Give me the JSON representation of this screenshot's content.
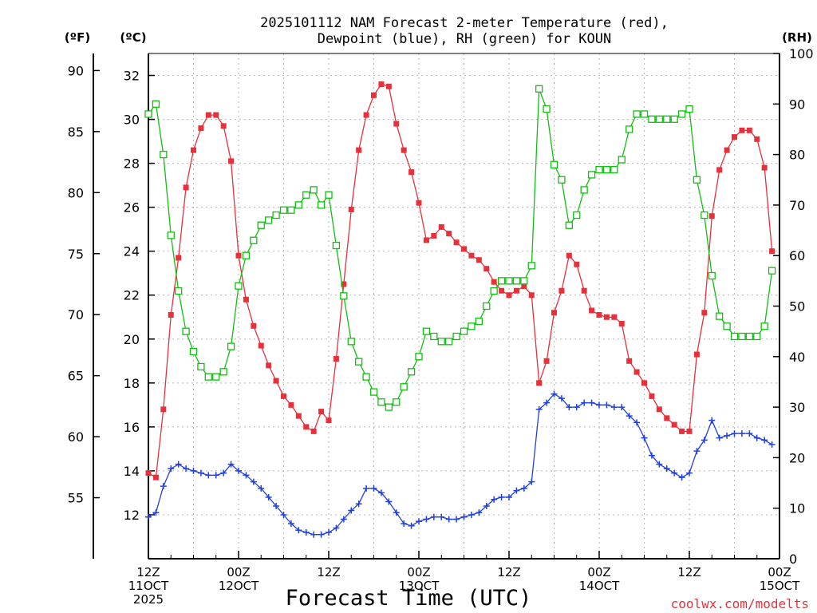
{
  "title": {
    "line1": "2025101112 NAM Forecast 2-meter Temperature (red),",
    "line2": "Dewpoint (blue), RH (green) for KOUN"
  },
  "unit_labels": {
    "fahrenheit": "(ºF)",
    "celsius": "(ºC)",
    "rh": "(RH)"
  },
  "x_axis_label": "Forecast Time (UTC)",
  "credit": "coolwx.com/modelts",
  "colors": {
    "temperature": "#e8303a",
    "dewpoint": "#2040e0",
    "rh": "#10c010",
    "credit": "#e8303a"
  },
  "chart_data": {
    "type": "line",
    "title": "2025101112 NAM Forecast 2-meter Temperature (red), Dewpoint (blue), RH (green) for KOUN",
    "xlabel": "Forecast Time (UTC)",
    "x_unit": "forecast hour",
    "xlim": [
      0,
      84
    ],
    "x_ticks": [
      {
        "x": 0,
        "lines": [
          "12Z",
          "11OCT",
          "2025"
        ]
      },
      {
        "x": 12,
        "lines": [
          "00Z",
          "12OCT"
        ]
      },
      {
        "x": 24,
        "lines": [
          "12Z"
        ]
      },
      {
        "x": 36,
        "lines": [
          "00Z",
          "13OCT"
        ]
      },
      {
        "x": 48,
        "lines": [
          "12Z"
        ]
      },
      {
        "x": 60,
        "lines": [
          "00Z",
          "14OCT"
        ]
      },
      {
        "x": 72,
        "lines": [
          "12Z"
        ]
      },
      {
        "x": 84,
        "lines": [
          "00Z",
          "15OCT"
        ]
      }
    ],
    "y_left_celsius": {
      "ticks": [
        12,
        14,
        16,
        18,
        20,
        22,
        24,
        26,
        28,
        30,
        32
      ],
      "range": [
        10,
        33
      ]
    },
    "y_left_fahrenheit": {
      "ticks": [
        55,
        60,
        65,
        70,
        75,
        80,
        85,
        90
      ]
    },
    "y_right_rh": {
      "ticks": [
        0,
        10,
        20,
        30,
        40,
        50,
        60,
        70,
        80,
        90,
        100
      ],
      "range": [
        0,
        100
      ]
    },
    "grid": true,
    "series": [
      {
        "name": "Temperature",
        "axis": "celsius",
        "marker": "filled-square",
        "color": "#e8303a",
        "values": [
          13.9,
          13.7,
          16.8,
          21.1,
          23.7,
          26.9,
          28.6,
          29.6,
          30.2,
          30.2,
          29.7,
          28.1,
          23.8,
          21.8,
          20.6,
          19.7,
          18.8,
          18.1,
          17.4,
          17.0,
          16.5,
          16.0,
          15.8,
          16.7,
          16.3,
          19.1,
          22.5,
          25.9,
          28.6,
          30.2,
          31.1,
          31.6,
          31.5,
          29.8,
          28.6,
          27.6,
          26.2,
          24.5,
          24.7,
          25.1,
          24.8,
          24.4,
          24.1,
          23.8,
          23.6,
          23.2,
          22.6,
          22.2,
          22.0,
          22.2,
          22.4,
          22.0,
          18.0,
          19.0,
          21.2,
          22.2,
          23.8,
          23.4,
          22.2,
          21.3,
          21.1,
          21.0,
          21.0,
          20.7,
          19.0,
          18.5,
          18.0,
          17.4,
          16.8,
          16.4,
          16.1,
          15.8,
          15.8,
          19.3,
          21.2,
          25.6,
          27.7,
          28.6,
          29.2,
          29.5,
          29.5,
          29.1,
          27.8,
          24.0
        ]
      },
      {
        "name": "Dewpoint",
        "axis": "celsius",
        "marker": "plus",
        "color": "#2040e0",
        "values": [
          11.9,
          12.1,
          13.3,
          14.1,
          14.3,
          14.1,
          14.0,
          13.9,
          13.8,
          13.8,
          13.9,
          14.3,
          14.0,
          13.8,
          13.5,
          13.2,
          12.8,
          12.4,
          12.0,
          11.6,
          11.3,
          11.2,
          11.1,
          11.1,
          11.2,
          11.4,
          11.8,
          12.2,
          12.5,
          13.2,
          13.2,
          13.0,
          12.6,
          12.1,
          11.6,
          11.5,
          11.7,
          11.8,
          11.9,
          11.9,
          11.8,
          11.8,
          11.9,
          12.0,
          12.1,
          12.4,
          12.7,
          12.8,
          12.8,
          13.1,
          13.2,
          13.5,
          16.8,
          17.1,
          17.5,
          17.3,
          16.9,
          16.9,
          17.1,
          17.1,
          17.0,
          17.0,
          16.9,
          16.9,
          16.5,
          16.2,
          15.5,
          14.7,
          14.3,
          14.1,
          13.9,
          13.7,
          13.9,
          14.9,
          15.4,
          16.3,
          15.5,
          15.6,
          15.7,
          15.7,
          15.7,
          15.5,
          15.4,
          15.2
        ]
      },
      {
        "name": "RH",
        "axis": "rh",
        "marker": "open-square",
        "color": "#10c010",
        "values": [
          88,
          90,
          80,
          64,
          53,
          45,
          41,
          38,
          36,
          36,
          37,
          42,
          54,
          60,
          63,
          66,
          67,
          68,
          69,
          69,
          70,
          72,
          73,
          70,
          72,
          62,
          52,
          43,
          39,
          36,
          33,
          31,
          30,
          31,
          34,
          37,
          40,
          45,
          44,
          43,
          43,
          44,
          45,
          46,
          47,
          50,
          53,
          55,
          55,
          55,
          55,
          58,
          93,
          89,
          78,
          75,
          66,
          68,
          73,
          76,
          77,
          77,
          77,
          79,
          85,
          88,
          88,
          87,
          87,
          87,
          87,
          88,
          89,
          75,
          68,
          56,
          48,
          46,
          44,
          44,
          44,
          44,
          46,
          57
        ]
      }
    ]
  }
}
